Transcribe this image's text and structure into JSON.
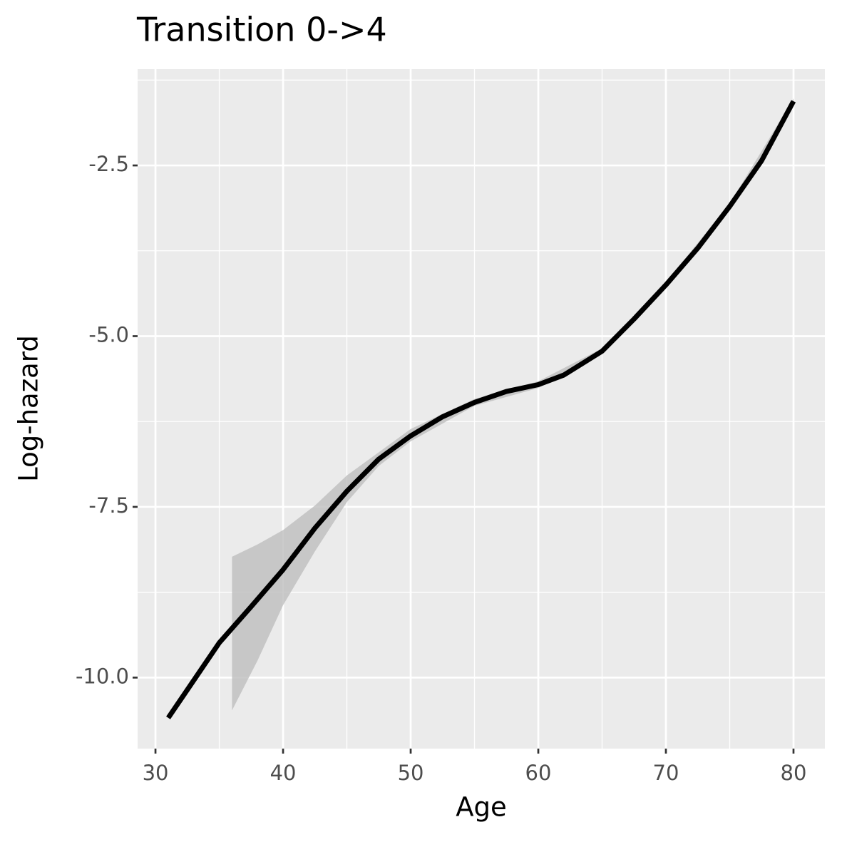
{
  "chart_data": {
    "type": "line",
    "title": "Transition 0->4",
    "x_label": "Age",
    "y_label": "Log-hazard",
    "x": [
      31,
      33,
      35,
      37.5,
      40,
      42.5,
      45,
      47.5,
      50,
      52.5,
      55,
      57.5,
      60,
      62,
      65,
      67.5,
      70,
      72.5,
      75,
      77.5,
      80
    ],
    "series": [
      {
        "color": "#000000",
        "values": [
          -10.59,
          -10.04,
          -9.49,
          -8.96,
          -8.42,
          -7.81,
          -7.27,
          -6.8,
          -6.46,
          -6.18,
          -5.97,
          -5.81,
          -5.71,
          -5.57,
          -5.22,
          -4.75,
          -4.25,
          -3.71,
          -3.1,
          -2.43,
          -1.56
        ]
      }
    ],
    "band": {
      "color": "#bebebe",
      "x": [
        36,
        38,
        40,
        42.5,
        45,
        47.5,
        50,
        55,
        60,
        65,
        70,
        75,
        80
      ],
      "upper": [
        -8.23,
        -8.05,
        -7.84,
        -7.48,
        -7.04,
        -6.7,
        -6.36,
        -5.92,
        -5.66,
        -5.18,
        -4.21,
        -3.06,
        -1.52
      ],
      "lower": [
        -10.48,
        -9.75,
        -8.94,
        -8.15,
        -7.43,
        -6.9,
        -6.54,
        -6.02,
        -5.76,
        -5.26,
        -4.29,
        -3.14,
        -1.6
      ]
    },
    "xlim": [
      28.6,
      82.46
    ],
    "ylim": [
      -11.04,
      -1.09
    ],
    "xticks": [
      30,
      40,
      50,
      60,
      70,
      80
    ],
    "yticks": [
      {
        "value": -10,
        "label": "-10.0"
      },
      -7.5,
      {
        "value": -5,
        "label": "-5.0"
      },
      -2.5
    ],
    "grid": true,
    "minor_grid": true,
    "panel_color": "#ebebeb"
  }
}
